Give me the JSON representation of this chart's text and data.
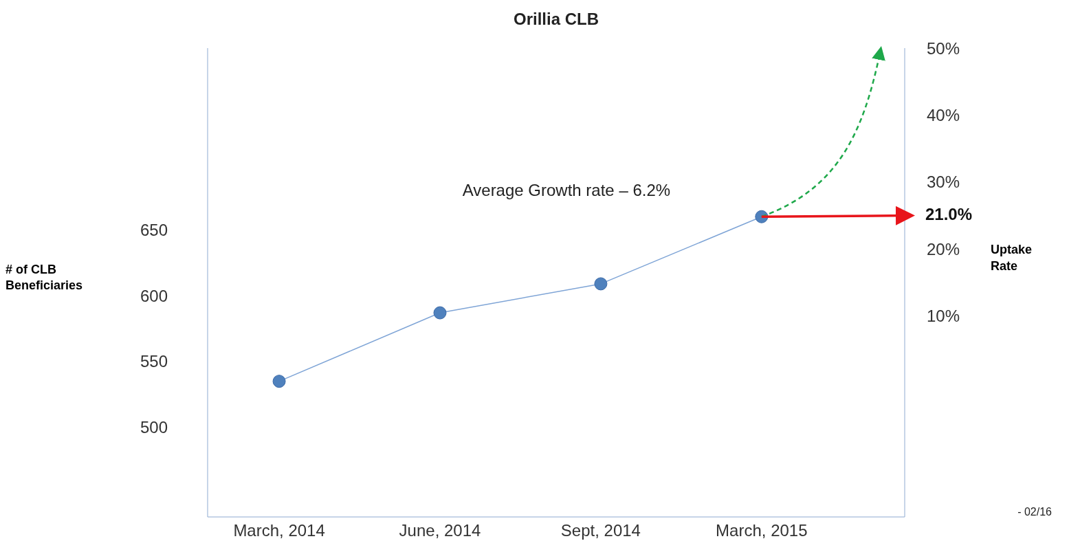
{
  "chart_data": {
    "type": "line",
    "title": "Orillia CLB",
    "ylabel": "# of CLB Beneficiaries",
    "y2label": "Uptake Rate",
    "categories": [
      "March, 2014",
      "June, 2014",
      "Sept, 2014",
      "March, 2015"
    ],
    "series": [
      {
        "color": "#4f81bd",
        "values": [
          535,
          587,
          609,
          660
        ]
      }
    ],
    "ylim": [
      432,
      788
    ],
    "yticks": [
      500,
      550,
      600,
      650
    ],
    "y2lim": [
      -20,
      50
    ],
    "y2ticks": [
      {
        "value": 10,
        "label": "10%"
      },
      {
        "value": 20,
        "label": "20%"
      },
      {
        "value": 30,
        "label": "30%"
      },
      {
        "value": 40,
        "label": "40%"
      },
      {
        "value": 50,
        "label": "50%"
      }
    ],
    "marker": "circle",
    "line_style": "solid",
    "annotations": [
      "Average Growth rate – 6.2%",
      "21.0%",
      "- 02/16"
    ]
  }
}
